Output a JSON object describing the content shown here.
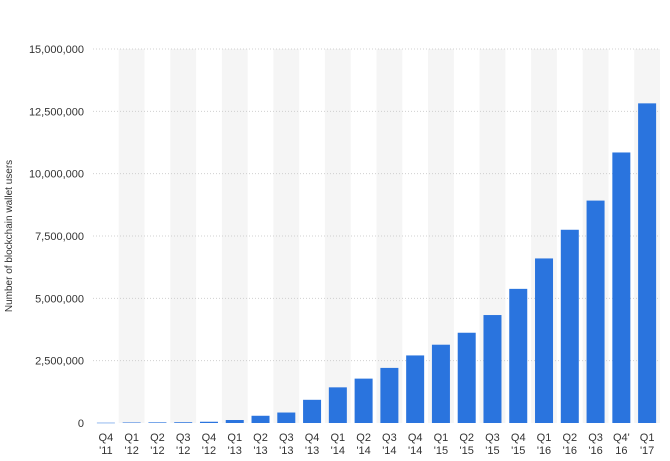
{
  "chart_data": {
    "type": "bar",
    "ylabel": "Number of blockchain wallet users",
    "ylim": [
      0,
      15000000
    ],
    "yticks": [
      0,
      2500000,
      5000000,
      7500000,
      10000000,
      12500000,
      15000000
    ],
    "ytick_labels": [
      "0",
      "2,500,000",
      "5,000,000",
      "7,500,000",
      "10,000,000",
      "12,500,000",
      "15,000,000"
    ],
    "grid": true,
    "legend": "none",
    "bar_color": "#2a74de",
    "categories": [
      {
        "q": "Q4",
        "y": "'11"
      },
      {
        "q": "Q1",
        "y": "'12"
      },
      {
        "q": "Q2",
        "y": "'12"
      },
      {
        "q": "Q3",
        "y": "'12"
      },
      {
        "q": "Q4",
        "y": "'12"
      },
      {
        "q": "Q1",
        "y": "'13"
      },
      {
        "q": "Q2",
        "y": "'13"
      },
      {
        "q": "Q3",
        "y": "'13"
      },
      {
        "q": "Q4",
        "y": "'13"
      },
      {
        "q": "Q1",
        "y": "'14"
      },
      {
        "q": "Q2",
        "y": "'14"
      },
      {
        "q": "Q3",
        "y": "'14"
      },
      {
        "q": "Q4",
        "y": "'14"
      },
      {
        "q": "Q1",
        "y": "'15"
      },
      {
        "q": "Q2",
        "y": "'15"
      },
      {
        "q": "Q3",
        "y": "'15"
      },
      {
        "q": "Q4",
        "y": "'15"
      },
      {
        "q": "Q1",
        "y": "'16"
      },
      {
        "q": "Q2",
        "y": "'16"
      },
      {
        "q": "Q3",
        "y": "'16"
      },
      {
        "q": "Q4'",
        "y": "16"
      },
      {
        "q": "Q1",
        "y": "'17"
      }
    ],
    "values": [
      11000,
      20000,
      25000,
      30000,
      50000,
      120000,
      290000,
      420000,
      930000,
      1430000,
      1780000,
      2210000,
      2710000,
      3140000,
      3620000,
      4330000,
      5380000,
      6600000,
      7750000,
      8920000,
      10850000,
      12820000
    ]
  }
}
